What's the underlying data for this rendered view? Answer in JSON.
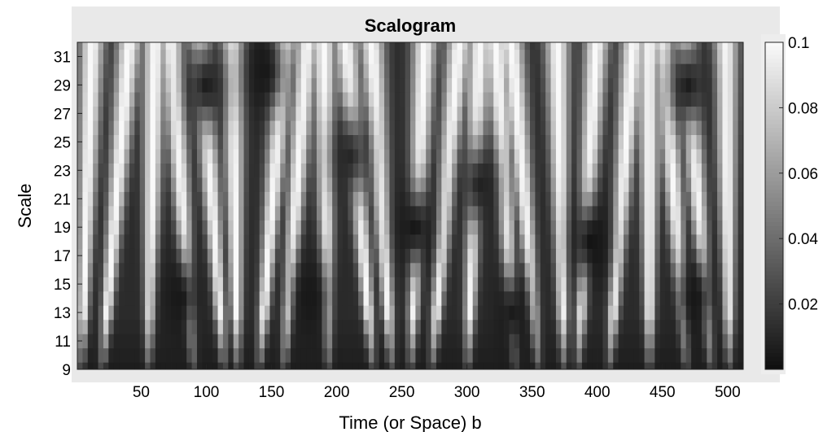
{
  "chart_data": {
    "type": "heatmap",
    "title": "Scalogram",
    "xlabel": "Time (or Space) b",
    "ylabel": "Scale",
    "x_ticks": [
      "50",
      "100",
      "150",
      "200",
      "250",
      "300",
      "350",
      "400",
      "450",
      "500"
    ],
    "x_tick_values": [
      50,
      100,
      150,
      200,
      250,
      300,
      350,
      400,
      450,
      500
    ],
    "xlim": [
      1,
      512
    ],
    "y_ticks": [
      "9",
      "11",
      "13",
      "15",
      "17",
      "19",
      "21",
      "23",
      "25",
      "27",
      "29",
      "31"
    ],
    "y_tick_values": [
      9,
      11,
      13,
      15,
      17,
      19,
      21,
      23,
      25,
      27,
      29,
      31
    ],
    "ylim": [
      9,
      32
    ],
    "colorbar": {
      "ticks": [
        "0.02",
        "0.04",
        "0.06",
        "0.08",
        "0.1"
      ],
      "tick_values": [
        0.02,
        0.04,
        0.06,
        0.08,
        0.1
      ],
      "range": [
        0,
        0.1
      ],
      "colormap": "gray"
    },
    "grid": false,
    "scale_rows": [
      9,
      10,
      11,
      12,
      13,
      14,
      15,
      16,
      17,
      18,
      19,
      20,
      21,
      22,
      23,
      24,
      25,
      26,
      27,
      28,
      29,
      30,
      31,
      32
    ],
    "bright_ridges_b": [
      8,
      30,
      58,
      82,
      105,
      122,
      150,
      168,
      192,
      218,
      235,
      262,
      283,
      305,
      330,
      345,
      372,
      392,
      418,
      440,
      460,
      478,
      500
    ],
    "dark_patches": [
      {
        "b": 80,
        "scale": 14,
        "value": 0.004
      },
      {
        "b": 100,
        "scale": 29,
        "value": 0.006
      },
      {
        "b": 145,
        "scale": 30,
        "value": 0.004
      },
      {
        "b": 180,
        "scale": 14,
        "value": 0.004
      },
      {
        "b": 210,
        "scale": 24,
        "value": 0.01
      },
      {
        "b": 260,
        "scale": 19,
        "value": 0.003
      },
      {
        "b": 310,
        "scale": 22,
        "value": 0.008
      },
      {
        "b": 335,
        "scale": 13,
        "value": 0.005
      },
      {
        "b": 395,
        "scale": 18,
        "value": 0.002
      },
      {
        "b": 470,
        "scale": 29,
        "value": 0.006
      },
      {
        "b": 475,
        "scale": 14,
        "value": 0.004
      }
    ],
    "low_scale_value": 0.004
  }
}
